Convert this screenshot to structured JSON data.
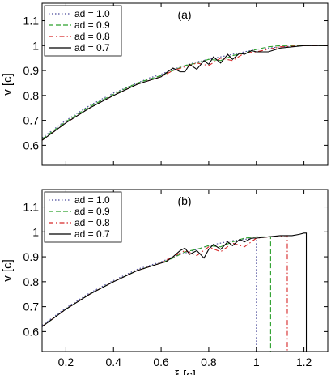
{
  "chart_data": [
    {
      "type": "line",
      "panel_label": "(a)",
      "xlabel": "",
      "ylabel": "v [c]",
      "xlim": [
        0.1,
        1.3
      ],
      "ylim": [
        0.52,
        1.17
      ],
      "xticks": [],
      "yticks": [
        "0.6",
        "0.7",
        "0.8",
        "0.9",
        "1",
        "1.1"
      ],
      "ytick_values": [
        0.6,
        0.7,
        0.8,
        0.9,
        1.0,
        1.1
      ],
      "legend_position": "top-left",
      "grid": false,
      "series": [
        {
          "name": "ad = 1.0",
          "color": "#4a4a9a",
          "dash": "dotted",
          "x": [
            0.1,
            0.2,
            0.3,
            0.4,
            0.5,
            0.55,
            0.6,
            0.65,
            0.7,
            0.75,
            0.8,
            0.85,
            0.9,
            0.95,
            1.0,
            1.05,
            1.1,
            1.2,
            1.3
          ],
          "y": [
            0.63,
            0.7,
            0.76,
            0.81,
            0.85,
            0.87,
            0.885,
            0.905,
            0.92,
            0.935,
            0.945,
            0.955,
            0.965,
            0.975,
            0.985,
            0.99,
            0.995,
            1.0,
            1.0
          ]
        },
        {
          "name": "ad = 0.9",
          "color": "#2ca02c",
          "dash": "dashed",
          "x": [
            0.1,
            0.2,
            0.3,
            0.4,
            0.5,
            0.55,
            0.6,
            0.65,
            0.7,
            0.75,
            0.8,
            0.85,
            0.9,
            0.95,
            1.0,
            1.05,
            1.1,
            1.2,
            1.3
          ],
          "y": [
            0.625,
            0.695,
            0.755,
            0.805,
            0.85,
            0.865,
            0.88,
            0.9,
            0.92,
            0.93,
            0.945,
            0.94,
            0.96,
            0.97,
            0.985,
            0.995,
            1.0,
            1.0,
            1.0
          ]
        },
        {
          "name": "ad = 0.8",
          "color": "#d62728",
          "dash": "dashdot",
          "x": [
            0.1,
            0.2,
            0.3,
            0.4,
            0.5,
            0.55,
            0.6,
            0.65,
            0.7,
            0.75,
            0.8,
            0.85,
            0.9,
            0.95,
            1.0,
            1.05,
            1.1,
            1.2,
            1.3
          ],
          "y": [
            0.62,
            0.69,
            0.75,
            0.8,
            0.845,
            0.86,
            0.875,
            0.9,
            0.915,
            0.93,
            0.92,
            0.95,
            0.94,
            0.97,
            0.975,
            0.985,
            0.995,
            1.0,
            1.0
          ]
        },
        {
          "name": "ad = 0.7",
          "color": "#000000",
          "dash": "solid",
          "x": [
            0.1,
            0.2,
            0.3,
            0.4,
            0.5,
            0.55,
            0.6,
            0.62,
            0.65,
            0.68,
            0.7,
            0.72,
            0.75,
            0.78,
            0.8,
            0.82,
            0.85,
            0.88,
            0.9,
            0.93,
            0.95,
            0.98,
            1.0,
            1.05,
            1.1,
            1.15,
            1.2,
            1.3
          ],
          "y": [
            0.62,
            0.69,
            0.75,
            0.8,
            0.845,
            0.86,
            0.875,
            0.89,
            0.91,
            0.895,
            0.895,
            0.925,
            0.905,
            0.94,
            0.925,
            0.955,
            0.93,
            0.965,
            0.945,
            0.97,
            0.965,
            0.98,
            0.975,
            0.975,
            0.99,
            0.995,
            1.0,
            1.0
          ]
        }
      ]
    },
    {
      "type": "line",
      "panel_label": "(b)",
      "xlabel": "ξ [c]",
      "ylabel": "v [c]",
      "xlim": [
        0.1,
        1.3
      ],
      "ylim": [
        0.52,
        1.17
      ],
      "xticks": [
        "0.2",
        "0.4",
        "0.6",
        "0.8",
        "1",
        "1.2"
      ],
      "xtick_values": [
        0.2,
        0.4,
        0.6,
        0.8,
        1.0,
        1.2
      ],
      "yticks": [
        "0.6",
        "0.7",
        "0.8",
        "0.9",
        "1",
        "1.1"
      ],
      "ytick_values": [
        0.6,
        0.7,
        0.8,
        0.9,
        1.0,
        1.1
      ],
      "legend_position": "top-left",
      "grid": false,
      "series": [
        {
          "name": "ad = 1.0",
          "color": "#4a4a9a",
          "dash": "dotted",
          "x": [
            0.1,
            0.2,
            0.3,
            0.4,
            0.5,
            0.55,
            0.6,
            0.65,
            0.7,
            0.75,
            0.8,
            0.85,
            0.9,
            0.95,
            0.99,
            1.0,
            1.0
          ],
          "y": [
            0.625,
            0.695,
            0.755,
            0.805,
            0.85,
            0.865,
            0.88,
            0.9,
            0.915,
            0.93,
            0.945,
            0.955,
            0.965,
            0.97,
            0.975,
            0.975,
            0.52
          ]
        },
        {
          "name": "ad = 0.9",
          "color": "#2ca02c",
          "dash": "dashed",
          "x": [
            0.1,
            0.2,
            0.3,
            0.4,
            0.5,
            0.55,
            0.6,
            0.65,
            0.7,
            0.75,
            0.8,
            0.85,
            0.9,
            0.95,
            1.0,
            1.06,
            1.06
          ],
          "y": [
            0.62,
            0.69,
            0.75,
            0.8,
            0.845,
            0.86,
            0.875,
            0.895,
            0.92,
            0.93,
            0.945,
            0.94,
            0.96,
            0.975,
            0.98,
            0.98,
            0.52
          ]
        },
        {
          "name": "ad = 0.8",
          "color": "#d62728",
          "dash": "dashdot",
          "x": [
            0.1,
            0.2,
            0.3,
            0.4,
            0.5,
            0.55,
            0.6,
            0.65,
            0.7,
            0.75,
            0.8,
            0.85,
            0.9,
            0.95,
            1.0,
            1.05,
            1.13,
            1.13
          ],
          "y": [
            0.62,
            0.69,
            0.75,
            0.8,
            0.845,
            0.86,
            0.875,
            0.9,
            0.925,
            0.905,
            0.94,
            0.92,
            0.955,
            0.94,
            0.975,
            0.98,
            0.985,
            0.52
          ]
        },
        {
          "name": "ad = 0.7",
          "color": "#000000",
          "dash": "solid",
          "x": [
            0.1,
            0.2,
            0.3,
            0.4,
            0.5,
            0.55,
            0.6,
            0.62,
            0.65,
            0.68,
            0.7,
            0.72,
            0.75,
            0.78,
            0.8,
            0.82,
            0.85,
            0.88,
            0.9,
            0.93,
            0.95,
            0.98,
            1.0,
            1.05,
            1.1,
            1.15,
            1.18,
            1.2,
            1.21,
            1.21
          ],
          "y": [
            0.62,
            0.69,
            0.75,
            0.8,
            0.845,
            0.86,
            0.875,
            0.88,
            0.9,
            0.925,
            0.935,
            0.91,
            0.925,
            0.895,
            0.93,
            0.95,
            0.93,
            0.96,
            0.945,
            0.97,
            0.96,
            0.975,
            0.975,
            0.98,
            0.985,
            0.985,
            0.99,
            0.995,
            0.995,
            0.52
          ]
        }
      ]
    }
  ]
}
